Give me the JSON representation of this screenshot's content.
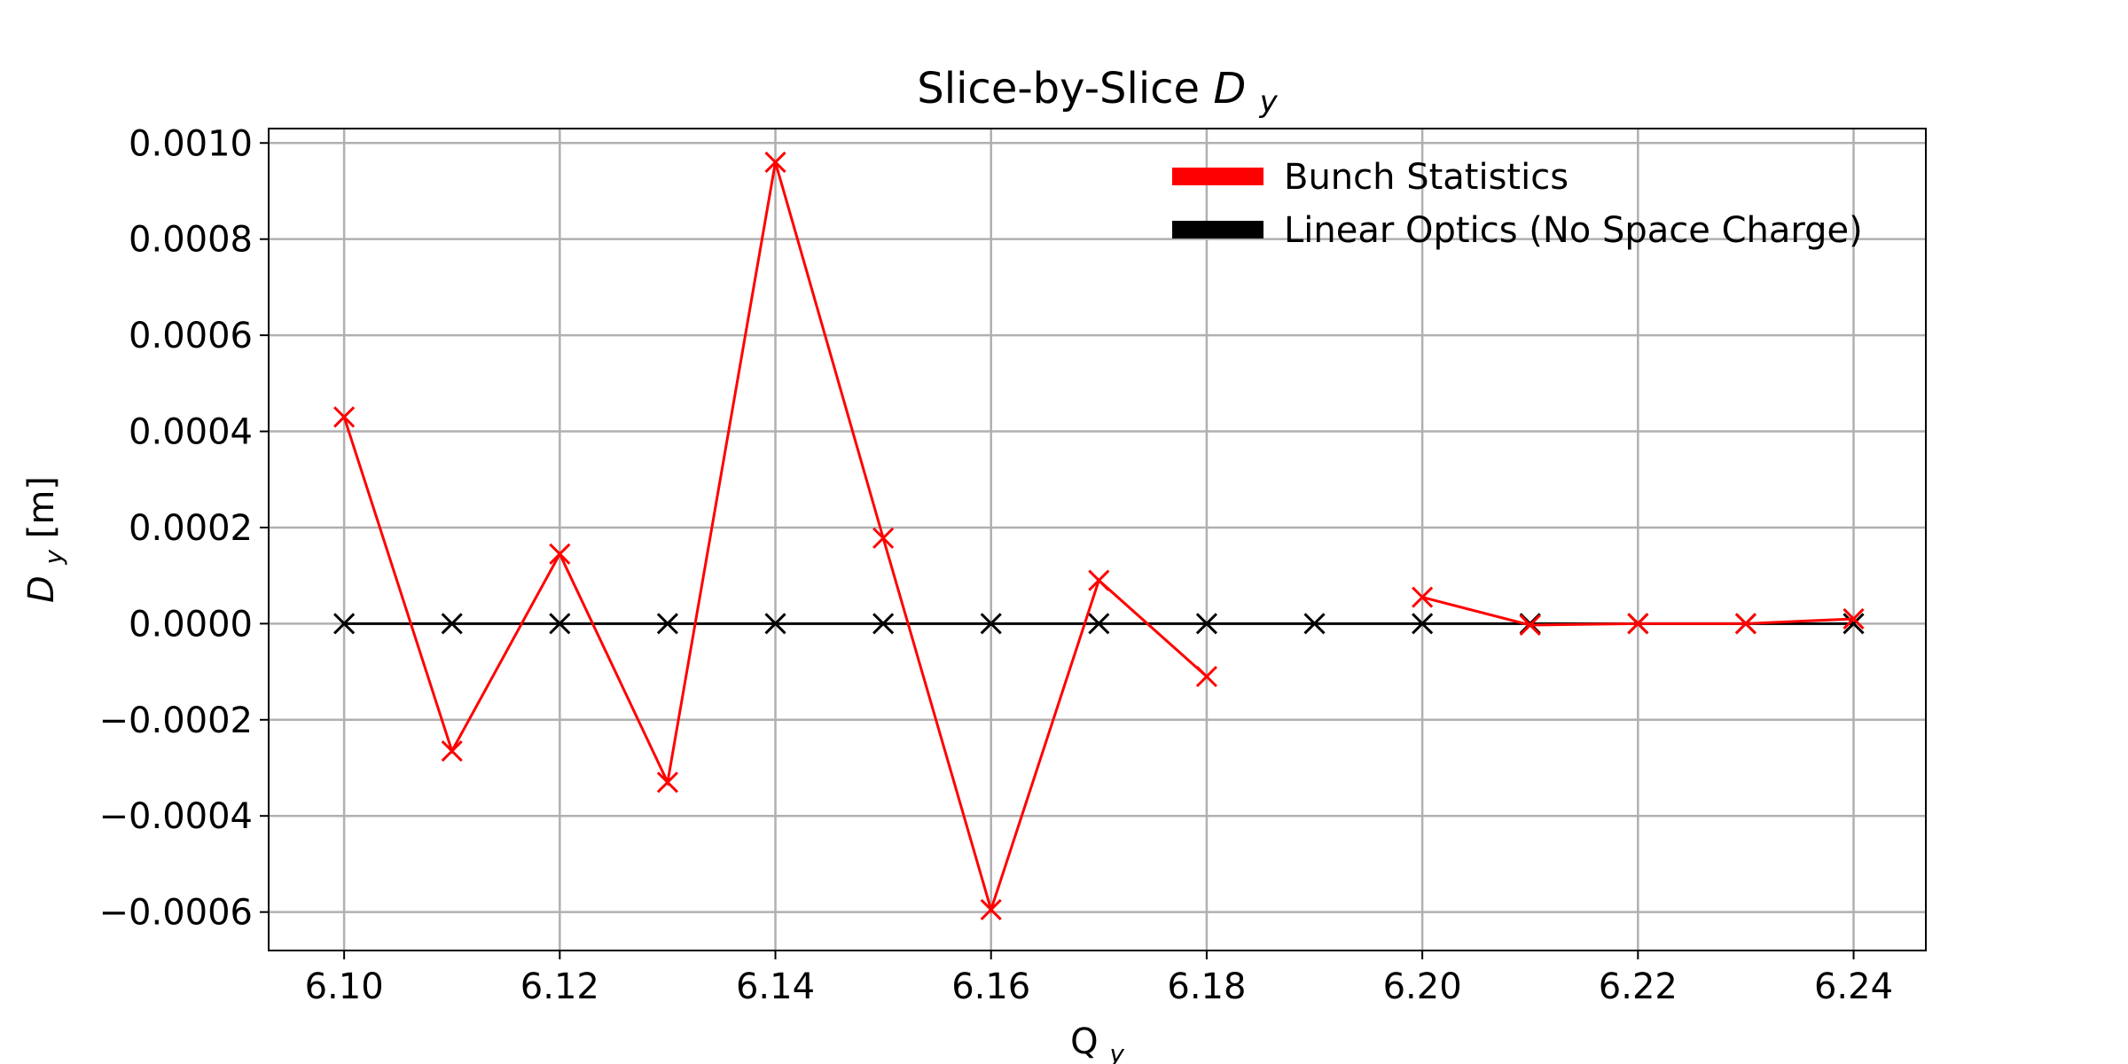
{
  "chart_data": {
    "type": "line",
    "title": "Slice-by-Slice",
    "title_symbol": "D",
    "title_symbol_sub": "y",
    "xlabel": "Q",
    "xlabel_sub": "y",
    "ylabel": "D",
    "ylabel_sub": "y",
    "ylabel_unit": "[m]",
    "xlim": [
      6.093,
      6.2467
    ],
    "ylim": [
      -0.00068,
      0.00103
    ],
    "x_ticks": [
      6.1,
      6.12,
      6.14,
      6.16,
      6.18,
      6.2,
      6.22,
      6.24
    ],
    "x_tick_labels": [
      "6.10",
      "6.12",
      "6.14",
      "6.16",
      "6.18",
      "6.20",
      "6.22",
      "6.24"
    ],
    "y_ticks": [
      -0.0006,
      -0.0004,
      -0.0002,
      0.0,
      0.0002,
      0.0004,
      0.0006,
      0.0008,
      0.001
    ],
    "y_tick_labels": [
      "−0.0006",
      "−0.0004",
      "−0.0002",
      "0.0000",
      "0.0002",
      "0.0004",
      "0.0006",
      "0.0008",
      "0.0010"
    ],
    "grid": true,
    "legend_position": "top-right",
    "series": [
      {
        "name": "Bunch Statistics",
        "color": "#ff0000",
        "segments": [
          {
            "x": [
              6.1,
              6.11,
              6.12,
              6.13,
              6.14,
              6.15,
              6.16,
              6.17,
              6.18
            ],
            "y": [
              0.00043,
              -0.000265,
              0.000145,
              -0.00033,
              0.00096,
              0.000178,
              -0.000595,
              9e-05,
              -0.00011
            ]
          },
          {
            "x": [
              6.2,
              6.21,
              6.22,
              6.23,
              6.24
            ],
            "y": [
              5.5e-05,
              -3e-06,
              0.0,
              0.0,
              1e-05
            ]
          }
        ]
      },
      {
        "name": "Linear Optics (No Space Charge)",
        "color": "#000000",
        "segments": [
          {
            "x": [
              6.1,
              6.11,
              6.12,
              6.13,
              6.14,
              6.15,
              6.16,
              6.17,
              6.18,
              6.19,
              6.2,
              6.21,
              6.22,
              6.23,
              6.24
            ],
            "y": [
              0,
              0,
              0,
              0,
              0,
              0,
              0,
              0,
              0,
              0,
              0,
              0,
              0,
              0,
              0
            ]
          }
        ]
      }
    ]
  }
}
